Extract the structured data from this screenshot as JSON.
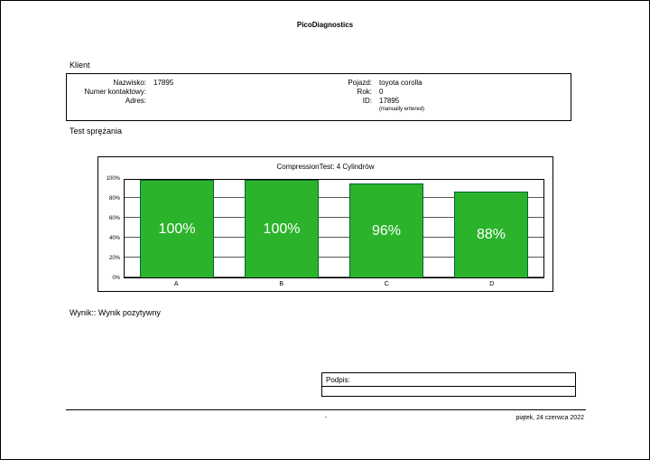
{
  "header": {
    "app_title": "PicoDiagnostics"
  },
  "client": {
    "section_label": "Klient",
    "fields_left": [
      {
        "label": "Nazwisko:",
        "value": "17895"
      },
      {
        "label": "Numer kontaktowy:",
        "value": ""
      },
      {
        "label": "Adres:",
        "value": ""
      }
    ],
    "fields_right": [
      {
        "label": "Pojazd:",
        "value": "toyota corolla"
      },
      {
        "label": "Rok:",
        "value": "0"
      },
      {
        "label": "ID:",
        "value": "17895"
      }
    ],
    "id_note": "(manually entered)"
  },
  "test": {
    "section_label": "Test sprężania"
  },
  "chart_data": {
    "type": "bar",
    "title": "CompressionTest: 4 Cylindrów",
    "categories": [
      "A",
      "B",
      "C",
      "D"
    ],
    "values": [
      100,
      100,
      96,
      88
    ],
    "bar_labels": [
      "100%",
      "100%",
      "96%",
      "88%"
    ],
    "y_ticks": [
      "100%",
      "80%",
      "60%",
      "40%",
      "20%",
      "0%"
    ],
    "ylim": [
      0,
      100
    ],
    "ylabel": "",
    "xlabel": "",
    "grid": true,
    "legend": "none",
    "bar_color": "#2cb32c"
  },
  "result": {
    "text": "Wynik:: Wynik pozytywny"
  },
  "signature": {
    "label": "Podpis:"
  },
  "footer": {
    "center": "-",
    "date": "piątek, 24 czerwca 2022"
  }
}
